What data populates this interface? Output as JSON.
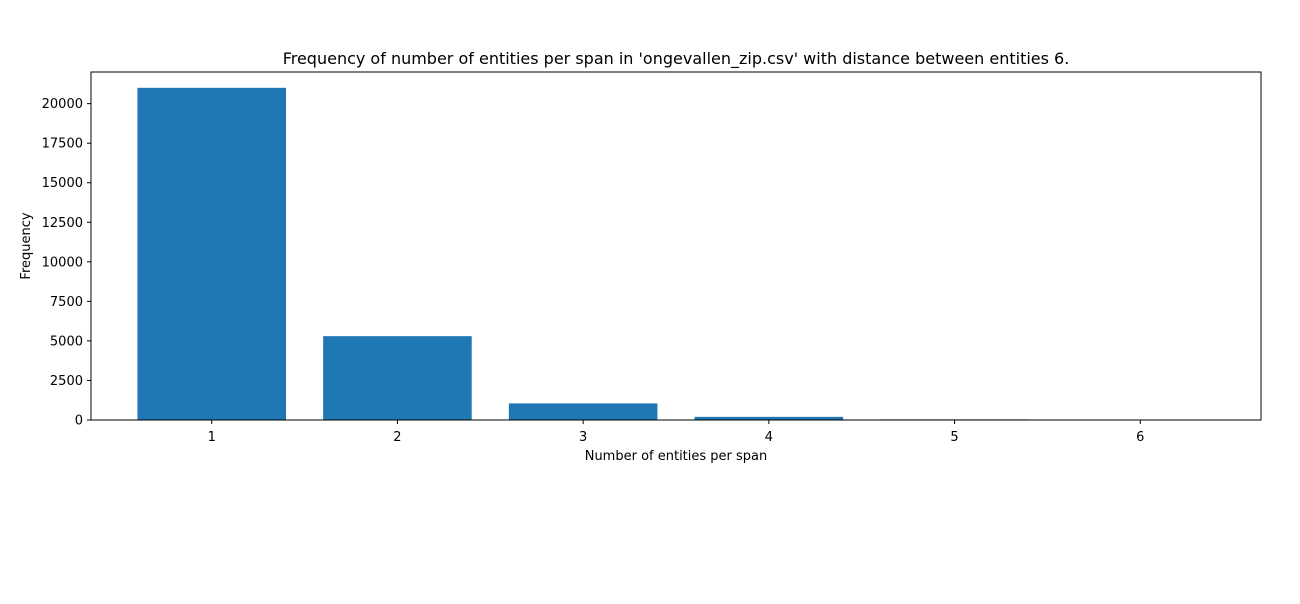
{
  "chart_data": {
    "type": "bar",
    "title": "Frequency of number of entities per span in 'ongevallen_zip.csv' with distance between entities 6.",
    "xlabel": "Number of entities per span",
    "ylabel": "Frequency",
    "categories": [
      "1",
      "2",
      "3",
      "4",
      "5",
      "6"
    ],
    "values": [
      21000,
      5300,
      1050,
      200,
      40,
      10
    ],
    "yticks": [
      "0",
      "2500",
      "5000",
      "7500",
      "10000",
      "12500",
      "15000",
      "17500",
      "20000"
    ],
    "ylim": [
      0,
      22000
    ],
    "xlim": [
      0.35,
      6.65
    ],
    "grid": false,
    "bar_color": "#1f77b4"
  }
}
